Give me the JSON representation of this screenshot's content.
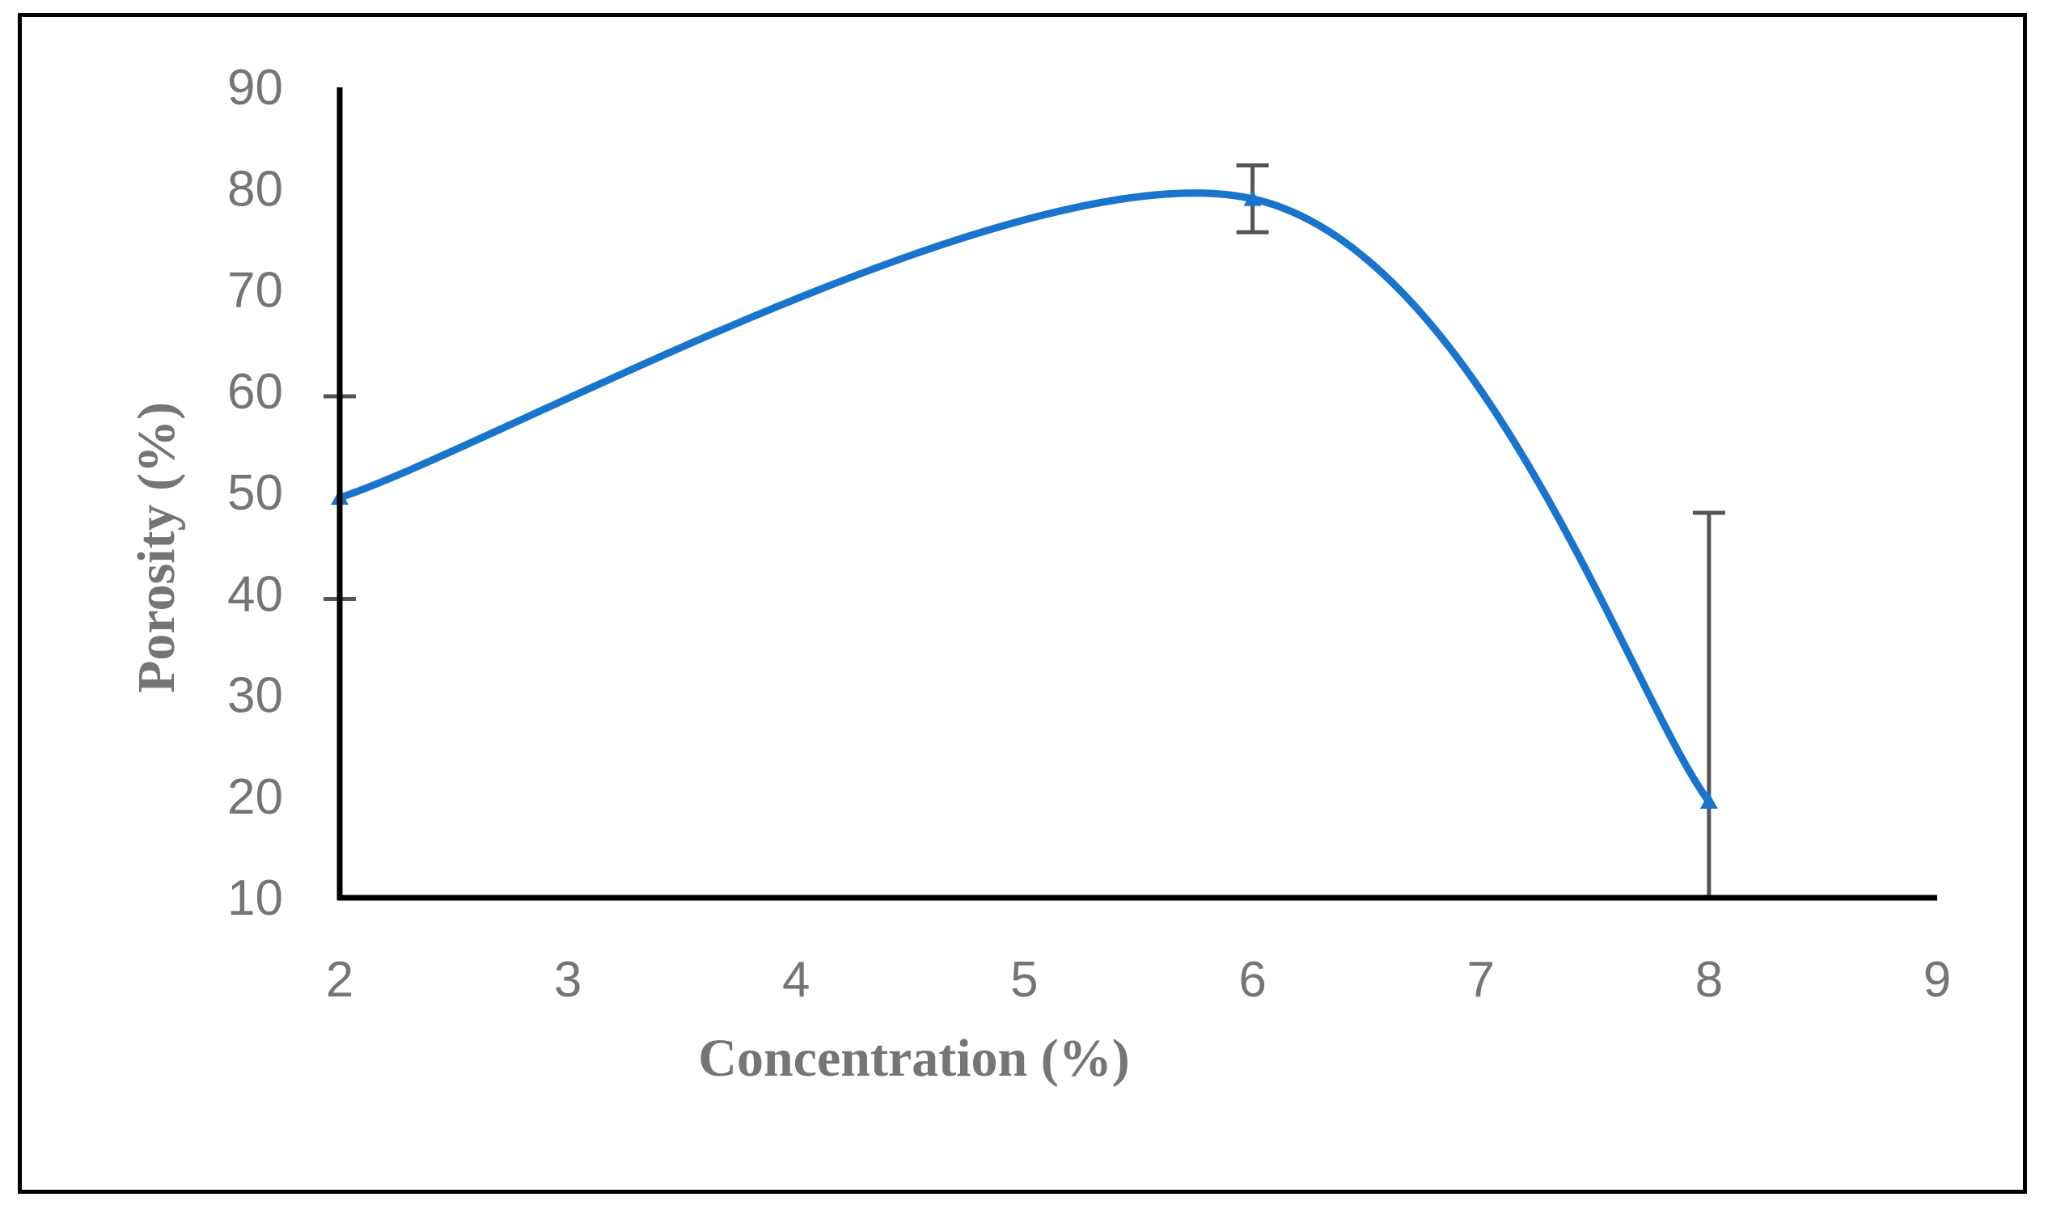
{
  "chart_data": {
    "type": "line",
    "title": "",
    "xlabel": "Concentration (%)",
    "ylabel": "Porosity (%)",
    "xlim": [
      2,
      9
    ],
    "ylim": [
      10,
      90
    ],
    "x_ticks": [
      "2",
      "3",
      "4",
      "5",
      "6",
      "7",
      "8",
      "9"
    ],
    "y_ticks": [
      "10",
      "20",
      "30",
      "40",
      "50",
      "60",
      "70",
      "80",
      "90"
    ],
    "smooth": true,
    "grid": false,
    "legend": "none",
    "series": [
      {
        "color": "#1874CD",
        "marker": "triangle",
        "x": [
          2,
          6,
          8
        ],
        "y": [
          49.5,
          79,
          19.5
        ],
        "error": [
          10,
          3.3,
          28.5
        ]
      }
    ],
    "error_bar_color": "#555555",
    "axis_color": "#000000"
  }
}
